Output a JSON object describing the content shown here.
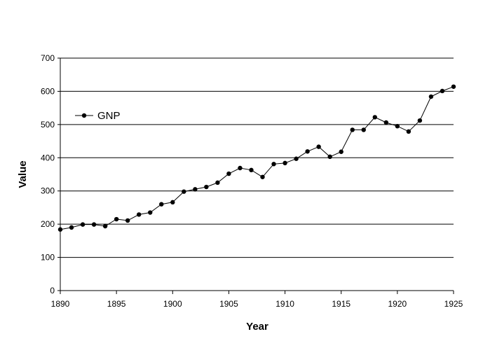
{
  "chart_data": {
    "type": "line",
    "xlabel": "Year",
    "ylabel": "Value",
    "xlim": [
      1890,
      1925
    ],
    "ylim": [
      0,
      700
    ],
    "x_ticks": [
      1890,
      1895,
      1900,
      1905,
      1910,
      1915,
      1920,
      1925
    ],
    "y_ticks": [
      0,
      100,
      200,
      300,
      400,
      500,
      600,
      700
    ],
    "grid": {
      "horizontal": true,
      "vertical": false
    },
    "legend": {
      "placement": "top-left, inside plot"
    },
    "series": [
      {
        "name": "GNP",
        "color": "#000000",
        "marker": "filled-circle",
        "x": [
          1890,
          1891,
          1892,
          1893,
          1894,
          1895,
          1896,
          1897,
          1898,
          1899,
          1900,
          1901,
          1902,
          1903,
          1904,
          1905,
          1906,
          1907,
          1908,
          1909,
          1910,
          1911,
          1912,
          1913,
          1914,
          1915,
          1916,
          1917,
          1918,
          1919,
          1920,
          1921,
          1922,
          1923,
          1924,
          1925
        ],
        "values": [
          184,
          190,
          199,
          199,
          194,
          215,
          211,
          229,
          235,
          260,
          266,
          298,
          305,
          312,
          325,
          352,
          369,
          363,
          342,
          381,
          384,
          397,
          419,
          433,
          403,
          418,
          484,
          484,
          522,
          506,
          495,
          479,
          512,
          584,
          601,
          614
        ]
      }
    ]
  }
}
